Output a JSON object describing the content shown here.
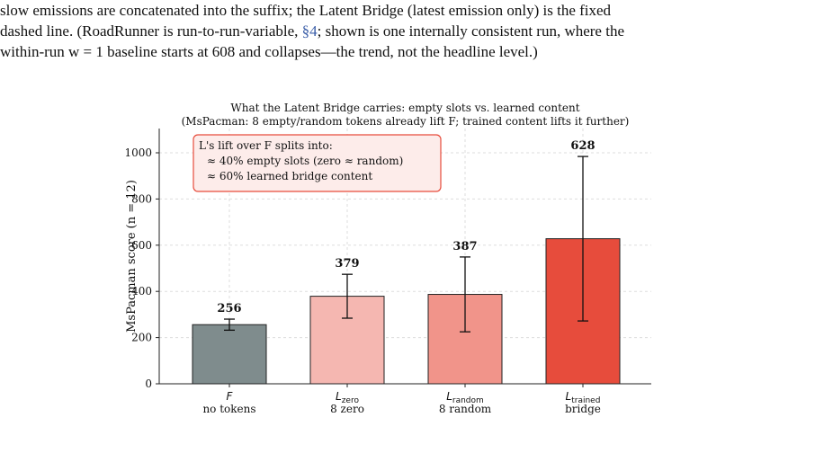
{
  "paragraph": {
    "lines": [
      "slow emissions are concatenated into the suffix; the Latent Bridge (latest emission only) is the fixed",
      "dashed line. (RoadRunner is run-to-run-variable, ",
      "; shown is one internally consistent run, where the",
      "within-run w = 1 baseline starts at 608 and collapses—the trend, not the headline level.)"
    ],
    "reference": "§4"
  },
  "chart_data": {
    "type": "bar",
    "title": [
      "What the Latent Bridge carries: empty slots vs. learned content",
      "(MsPacman: 8 empty/random tokens already lift F; trained content lifts it further)"
    ],
    "ylabel": "MsPacman score (n = 12)",
    "categories": [
      "no tokens",
      "8 zero",
      "8 random",
      "bridge"
    ],
    "category_symbols": [
      "F",
      "L",
      "L",
      "L"
    ],
    "category_subscripts": [
      null,
      "zero",
      "random",
      "trained"
    ],
    "values": [
      256,
      379,
      387,
      628
    ],
    "errors": [
      24,
      95,
      162,
      356
    ],
    "colors": [
      "#7f8c8d",
      "#f5b7b1",
      "#f1948a",
      "#e74c3c"
    ],
    "ylim": [
      0,
      1105
    ],
    "yticks": [
      0,
      200,
      400,
      600,
      800,
      1000
    ],
    "grid": true,
    "annotation": [
      "L's lift over F splits into:",
      "≈ 40% empty slots (zero ≈ random)",
      "≈ 60% learned bridge content"
    ]
  }
}
